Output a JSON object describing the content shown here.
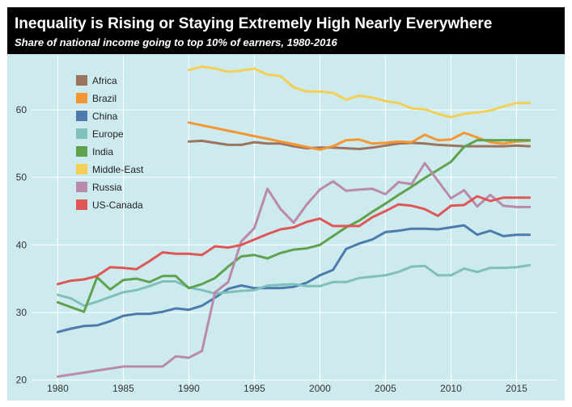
{
  "chart_data": {
    "type": "line",
    "title": "Inequality is Rising or Staying Extremely High Nearly Everywhere",
    "subtitle": "Share of national income going to top 10% of earners, 1980-2016",
    "xlabel": "",
    "ylabel": "",
    "xlim": [
      1978,
      2018
    ],
    "ylim": [
      19,
      68
    ],
    "x_ticks": [
      1980,
      1985,
      1990,
      1995,
      2000,
      2005,
      2010,
      2015
    ],
    "y_ticks": [
      20,
      30,
      40,
      50,
      60
    ],
    "grid": true,
    "legend_position": "top-left",
    "series": [
      {
        "name": "Africa",
        "color": "#9b7460",
        "points": [
          [
            1990,
            55.3
          ],
          [
            1991,
            55.4
          ],
          [
            1992,
            55.1
          ],
          [
            1993,
            54.8
          ],
          [
            1994,
            54.8
          ],
          [
            1995,
            55.2
          ],
          [
            1996,
            55.0
          ],
          [
            1997,
            55.0
          ],
          [
            1998,
            54.6
          ],
          [
            1999,
            54.3
          ],
          [
            2000,
            54.4
          ],
          [
            2001,
            54.4
          ],
          [
            2002,
            54.3
          ],
          [
            2003,
            54.2
          ],
          [
            2004,
            54.4
          ],
          [
            2005,
            54.7
          ],
          [
            2006,
            55.0
          ],
          [
            2007,
            55.1
          ],
          [
            2008,
            55.0
          ],
          [
            2009,
            54.8
          ],
          [
            2010,
            54.7
          ],
          [
            2011,
            54.6
          ],
          [
            2012,
            54.6
          ],
          [
            2013,
            54.6
          ],
          [
            2014,
            54.6
          ],
          [
            2015,
            54.7
          ],
          [
            2016,
            54.6
          ]
        ]
      },
      {
        "name": "Brazil",
        "color": "#f59634",
        "points": [
          [
            1990,
            58.1
          ],
          [
            1991,
            57.7
          ],
          [
            1992,
            57.3
          ],
          [
            1993,
            56.9
          ],
          [
            1994,
            56.5
          ],
          [
            1995,
            56.1
          ],
          [
            1996,
            55.7
          ],
          [
            1997,
            55.3
          ],
          [
            1998,
            54.9
          ],
          [
            1999,
            54.5
          ],
          [
            2000,
            54.1
          ],
          [
            2001,
            54.6
          ],
          [
            2002,
            55.5
          ],
          [
            2003,
            55.6
          ],
          [
            2004,
            55.0
          ],
          [
            2005,
            55.1
          ],
          [
            2006,
            55.3
          ],
          [
            2007,
            55.2
          ],
          [
            2008,
            56.3
          ],
          [
            2009,
            55.5
          ],
          [
            2010,
            55.6
          ],
          [
            2011,
            56.6
          ],
          [
            2012,
            55.9
          ],
          [
            2013,
            55.2
          ],
          [
            2014,
            55.0
          ],
          [
            2015,
            55.3
          ],
          [
            2016,
            55.4
          ]
        ]
      },
      {
        "name": "China",
        "color": "#4c7bad",
        "points": [
          [
            1980,
            27.1
          ],
          [
            1981,
            27.6
          ],
          [
            1982,
            28.0
          ],
          [
            1983,
            28.1
          ],
          [
            1984,
            28.7
          ],
          [
            1985,
            29.5
          ],
          [
            1986,
            29.8
          ],
          [
            1987,
            29.8
          ],
          [
            1988,
            30.1
          ],
          [
            1989,
            30.6
          ],
          [
            1990,
            30.4
          ],
          [
            1991,
            31.0
          ],
          [
            1992,
            32.2
          ],
          [
            1993,
            33.5
          ],
          [
            1994,
            34.0
          ],
          [
            1995,
            33.6
          ],
          [
            1996,
            33.6
          ],
          [
            1997,
            33.6
          ],
          [
            1998,
            33.8
          ],
          [
            1999,
            34.4
          ],
          [
            2000,
            35.5
          ],
          [
            2001,
            36.3
          ],
          [
            2002,
            39.4
          ],
          [
            2003,
            40.2
          ],
          [
            2004,
            40.8
          ],
          [
            2005,
            41.9
          ],
          [
            2006,
            42.1
          ],
          [
            2007,
            42.4
          ],
          [
            2008,
            42.4
          ],
          [
            2009,
            42.3
          ],
          [
            2010,
            42.6
          ],
          [
            2011,
            42.9
          ],
          [
            2012,
            41.5
          ],
          [
            2013,
            42.1
          ],
          [
            2014,
            41.3
          ],
          [
            2015,
            41.5
          ],
          [
            2016,
            41.5
          ]
        ]
      },
      {
        "name": "Europe",
        "color": "#7fbfbc",
        "points": [
          [
            1980,
            32.6
          ],
          [
            1981,
            32.1
          ],
          [
            1982,
            31.0
          ],
          [
            1983,
            31.6
          ],
          [
            1984,
            32.3
          ],
          [
            1985,
            33.0
          ],
          [
            1986,
            33.3
          ],
          [
            1987,
            33.9
          ],
          [
            1988,
            34.6
          ],
          [
            1989,
            34.6
          ],
          [
            1990,
            33.7
          ],
          [
            1991,
            33.3
          ],
          [
            1992,
            32.8
          ],
          [
            1993,
            33.0
          ],
          [
            1994,
            33.2
          ],
          [
            1995,
            33.3
          ],
          [
            1996,
            34.0
          ],
          [
            1997,
            34.1
          ],
          [
            1998,
            34.2
          ],
          [
            1999,
            33.9
          ],
          [
            2000,
            33.9
          ],
          [
            2001,
            34.5
          ],
          [
            2002,
            34.5
          ],
          [
            2003,
            35.1
          ],
          [
            2004,
            35.3
          ],
          [
            2005,
            35.5
          ],
          [
            2006,
            36.0
          ],
          [
            2007,
            36.8
          ],
          [
            2008,
            36.9
          ],
          [
            2009,
            35.5
          ],
          [
            2010,
            35.5
          ],
          [
            2011,
            36.5
          ],
          [
            2012,
            36.0
          ],
          [
            2013,
            36.6
          ],
          [
            2014,
            36.6
          ],
          [
            2015,
            36.7
          ],
          [
            2016,
            37.0
          ]
        ]
      },
      {
        "name": "India",
        "color": "#5fa24e",
        "points": [
          [
            1980,
            31.5
          ],
          [
            1981,
            30.8
          ],
          [
            1982,
            30.1
          ],
          [
            1983,
            35.2
          ],
          [
            1984,
            33.4
          ],
          [
            1985,
            34.8
          ],
          [
            1986,
            35.0
          ],
          [
            1987,
            34.5
          ],
          [
            1988,
            35.4
          ],
          [
            1989,
            35.4
          ],
          [
            1990,
            33.6
          ],
          [
            1991,
            34.2
          ],
          [
            1992,
            35.1
          ],
          [
            1993,
            36.8
          ],
          [
            1994,
            38.3
          ],
          [
            1995,
            38.5
          ],
          [
            1996,
            38.0
          ],
          [
            1997,
            38.8
          ],
          [
            1998,
            39.3
          ],
          [
            1999,
            39.5
          ],
          [
            2000,
            40.0
          ],
          [
            2001,
            41.3
          ],
          [
            2002,
            42.6
          ],
          [
            2003,
            43.6
          ],
          [
            2004,
            44.9
          ],
          [
            2005,
            46.1
          ],
          [
            2006,
            47.4
          ],
          [
            2007,
            48.6
          ],
          [
            2008,
            49.9
          ],
          [
            2009,
            51.1
          ],
          [
            2010,
            52.3
          ],
          [
            2011,
            54.5
          ],
          [
            2012,
            55.5
          ],
          [
            2013,
            55.5
          ],
          [
            2014,
            55.5
          ],
          [
            2015,
            55.5
          ],
          [
            2016,
            55.5
          ]
        ]
      },
      {
        "name": "Middle-East",
        "color": "#f3cf55",
        "points": [
          [
            1990,
            65.9
          ],
          [
            1991,
            66.4
          ],
          [
            1992,
            66.1
          ],
          [
            1993,
            65.6
          ],
          [
            1994,
            65.8
          ],
          [
            1995,
            66.1
          ],
          [
            1996,
            65.2
          ],
          [
            1997,
            65.0
          ],
          [
            1998,
            63.3
          ],
          [
            1999,
            62.7
          ],
          [
            2000,
            62.7
          ],
          [
            2001,
            62.5
          ],
          [
            2002,
            61.5
          ],
          [
            2003,
            62.1
          ],
          [
            2004,
            61.8
          ],
          [
            2005,
            61.3
          ],
          [
            2006,
            61.0
          ],
          [
            2007,
            60.2
          ],
          [
            2008,
            60.1
          ],
          [
            2009,
            59.4
          ],
          [
            2010,
            58.9
          ],
          [
            2011,
            59.4
          ],
          [
            2012,
            59.6
          ],
          [
            2013,
            59.9
          ],
          [
            2014,
            60.5
          ],
          [
            2015,
            61.0
          ],
          [
            2016,
            61.0
          ]
        ]
      },
      {
        "name": "Russia",
        "color": "#b98aac",
        "points": [
          [
            1980,
            20.5
          ],
          [
            1981,
            20.8
          ],
          [
            1982,
            21.1
          ],
          [
            1983,
            21.4
          ],
          [
            1984,
            21.7
          ],
          [
            1985,
            22.0
          ],
          [
            1986,
            22.0
          ],
          [
            1987,
            22.0
          ],
          [
            1988,
            22.0
          ],
          [
            1989,
            23.5
          ],
          [
            1990,
            23.3
          ],
          [
            1991,
            24.3
          ],
          [
            1992,
            33.0
          ],
          [
            1993,
            34.5
          ],
          [
            1994,
            40.5
          ],
          [
            1995,
            42.5
          ],
          [
            1996,
            48.3
          ],
          [
            1997,
            45.3
          ],
          [
            1998,
            43.3
          ],
          [
            1999,
            46.0
          ],
          [
            2000,
            48.2
          ],
          [
            2001,
            49.4
          ],
          [
            2002,
            48.0
          ],
          [
            2003,
            48.2
          ],
          [
            2004,
            48.3
          ],
          [
            2005,
            47.5
          ],
          [
            2006,
            49.3
          ],
          [
            2007,
            49.0
          ],
          [
            2008,
            52.1
          ],
          [
            2009,
            49.5
          ],
          [
            2010,
            46.9
          ],
          [
            2011,
            48.1
          ],
          [
            2012,
            45.7
          ],
          [
            2013,
            47.4
          ],
          [
            2014,
            45.8
          ],
          [
            2015,
            45.6
          ],
          [
            2016,
            45.6
          ]
        ]
      },
      {
        "name": "US-Canada",
        "color": "#e05556",
        "points": [
          [
            1980,
            34.2
          ],
          [
            1981,
            34.7
          ],
          [
            1982,
            34.9
          ],
          [
            1983,
            35.4
          ],
          [
            1984,
            36.7
          ],
          [
            1985,
            36.6
          ],
          [
            1986,
            36.4
          ],
          [
            1987,
            37.6
          ],
          [
            1988,
            38.9
          ],
          [
            1989,
            38.7
          ],
          [
            1990,
            38.7
          ],
          [
            1991,
            38.5
          ],
          [
            1992,
            39.8
          ],
          [
            1993,
            39.6
          ],
          [
            1994,
            40.0
          ],
          [
            1995,
            40.8
          ],
          [
            1996,
            41.6
          ],
          [
            1997,
            42.3
          ],
          [
            1998,
            42.6
          ],
          [
            1999,
            43.4
          ],
          [
            2000,
            43.9
          ],
          [
            2001,
            42.8
          ],
          [
            2002,
            42.8
          ],
          [
            2003,
            42.8
          ],
          [
            2004,
            44.1
          ],
          [
            2005,
            45.0
          ],
          [
            2006,
            46.0
          ],
          [
            2007,
            45.8
          ],
          [
            2008,
            45.3
          ],
          [
            2009,
            44.3
          ],
          [
            2010,
            45.8
          ],
          [
            2011,
            45.9
          ],
          [
            2012,
            47.2
          ],
          [
            2013,
            46.5
          ],
          [
            2014,
            47.0
          ],
          [
            2015,
            47.0
          ],
          [
            2016,
            47.0
          ]
        ]
      }
    ]
  }
}
